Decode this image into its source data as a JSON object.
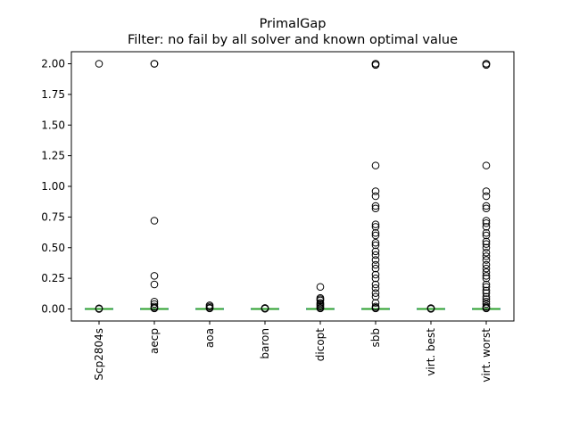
{
  "chart_data": {
    "type": "box",
    "title": "PrimalGap",
    "subtitle": "Filter: no fail by all solver and known optimal value",
    "xlabel": "",
    "ylabel": "",
    "ylim": [
      -0.1,
      2.1
    ],
    "yticks": [
      0.0,
      0.25,
      0.5,
      0.75,
      1.0,
      1.25,
      1.5,
      1.75,
      2.0
    ],
    "ytick_labels": [
      "0.00",
      "0.25",
      "0.50",
      "0.75",
      "1.00",
      "1.25",
      "1.50",
      "1.75",
      "2.00"
    ],
    "categories": [
      "Scp2804s",
      "aecp",
      "aoa",
      "baron",
      "dicopt",
      "sbb",
      "virt. best",
      "virt. worst"
    ],
    "boxes": [
      {
        "category": "Scp2804s",
        "q1": 0,
        "median": 0,
        "q3": 0,
        "whisker_low": 0,
        "whisker_high": 0,
        "fliers": [
          0.0,
          0.005,
          2.0
        ]
      },
      {
        "category": "aecp",
        "q1": 0,
        "median": 0,
        "q3": 0,
        "whisker_low": 0,
        "whisker_high": 0,
        "fliers": [
          0.005,
          0.01,
          0.02,
          0.04,
          0.06,
          0.2,
          0.27,
          0.72,
          2.0,
          2.0
        ]
      },
      {
        "category": "aoa",
        "q1": 0,
        "median": 0,
        "q3": 0,
        "whisker_low": 0,
        "whisker_high": 0,
        "fliers": [
          0.005,
          0.01,
          0.02,
          0.03
        ]
      },
      {
        "category": "baron",
        "q1": 0,
        "median": 0,
        "q3": 0,
        "whisker_low": 0,
        "whisker_high": 0,
        "fliers": [
          0.002,
          0.005,
          0.008
        ]
      },
      {
        "category": "dicopt",
        "q1": 0,
        "median": 0,
        "q3": 0,
        "whisker_low": 0,
        "whisker_high": 0,
        "fliers": [
          0.005,
          0.01,
          0.02,
          0.03,
          0.04,
          0.05,
          0.07,
          0.08,
          0.09,
          0.18
        ]
      },
      {
        "category": "sbb",
        "q1": 0,
        "median": 0,
        "q3": 0,
        "whisker_low": 0,
        "whisker_high": 0,
        "fliers": [
          0.005,
          0.01,
          0.02,
          0.05,
          0.1,
          0.13,
          0.17,
          0.2,
          0.25,
          0.28,
          0.33,
          0.36,
          0.4,
          0.44,
          0.47,
          0.52,
          0.54,
          0.6,
          0.62,
          0.67,
          0.69,
          0.82,
          0.84,
          0.92,
          0.96,
          1.17,
          1.99,
          2.0,
          2.0
        ]
      },
      {
        "category": "virt. best",
        "q1": 0,
        "median": 0,
        "q3": 0,
        "whisker_low": 0,
        "whisker_high": 0,
        "fliers": [
          0.001,
          0.004,
          0.007
        ]
      },
      {
        "category": "virt. worst",
        "q1": 0,
        "median": 0,
        "q3": 0,
        "whisker_low": 0,
        "whisker_high": 0,
        "fliers": [
          0.005,
          0.01,
          0.02,
          0.04,
          0.06,
          0.08,
          0.1,
          0.13,
          0.15,
          0.18,
          0.2,
          0.25,
          0.27,
          0.3,
          0.33,
          0.36,
          0.4,
          0.43,
          0.46,
          0.5,
          0.53,
          0.55,
          0.6,
          0.62,
          0.67,
          0.7,
          0.72,
          0.82,
          0.84,
          0.92,
          0.96,
          1.17,
          1.99,
          2.0,
          2.0
        ]
      }
    ],
    "colors": {
      "median": "#2ca02c",
      "box": "#1f77b4",
      "flier_edge": "#000000",
      "axes": "#000000"
    },
    "grid": false,
    "legend": "none"
  }
}
